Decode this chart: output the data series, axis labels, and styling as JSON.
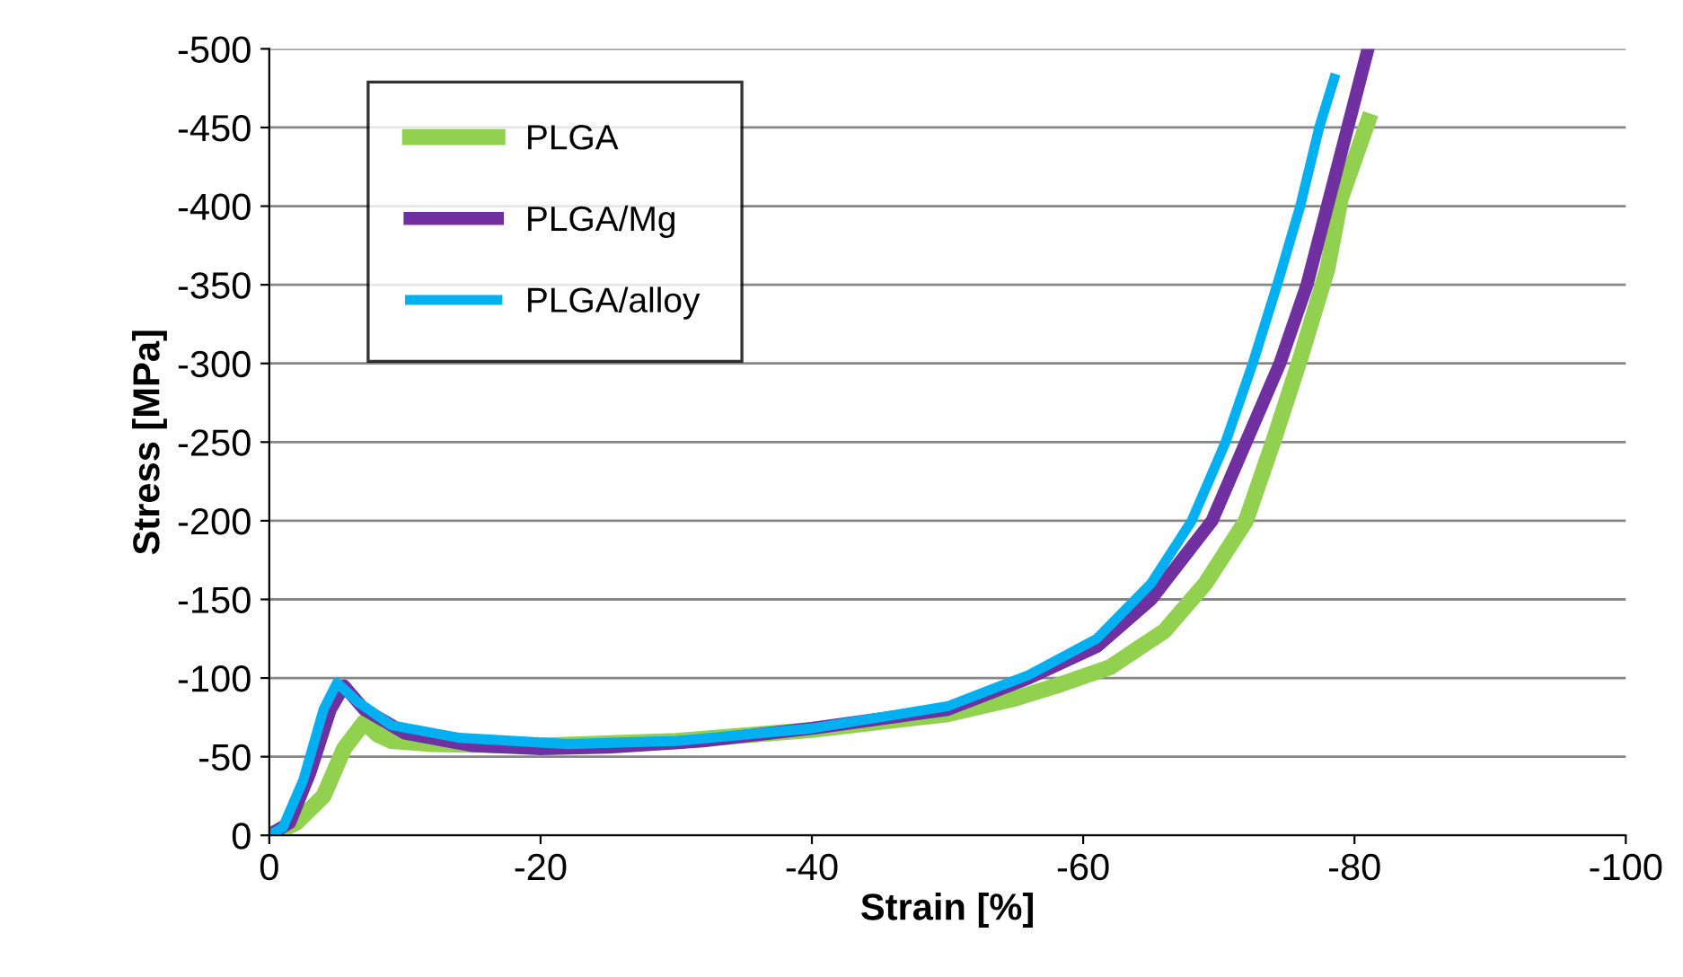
{
  "chart_data": {
    "type": "line",
    "xlabel": "Strain [%]",
    "ylabel": "Stress [MPa]",
    "xlim": [
      0,
      -100
    ],
    "ylim": [
      0,
      -500
    ],
    "xticks": [
      {
        "value": 0,
        "label": "0"
      },
      {
        "value": -20,
        "label": "-20"
      },
      {
        "value": -40,
        "label": "-40"
      },
      {
        "value": -60,
        "label": "-60"
      },
      {
        "value": -80,
        "label": "-80"
      },
      {
        "value": -100,
        "label": "-100"
      }
    ],
    "yticks": [
      {
        "value": 0,
        "label": "0"
      },
      {
        "value": -50,
        "label": "-50"
      },
      {
        "value": -100,
        "label": "-100"
      },
      {
        "value": -150,
        "label": "-150"
      },
      {
        "value": -200,
        "label": "-200"
      },
      {
        "value": -250,
        "label": "-250"
      },
      {
        "value": -300,
        "label": "-300"
      },
      {
        "value": -350,
        "label": "-350"
      },
      {
        "value": -400,
        "label": "-400"
      },
      {
        "value": -450,
        "label": "-450"
      },
      {
        "value": -500,
        "label": "-500"
      }
    ],
    "grid": "y",
    "legend": "top left",
    "marker": "none",
    "line_style": "solid",
    "series": [
      {
        "name": "PLGA",
        "color": "#92d050",
        "x": [
          0,
          -2,
          -4,
          -5.5,
          -7,
          -8,
          -9,
          -12,
          -20,
          -30,
          -40,
          -50,
          -55,
          -58,
          -62,
          -66,
          -69,
          -72,
          -74,
          -76,
          -78,
          -79,
          -81
        ],
        "values": [
          0,
          -8,
          -25,
          -55,
          -72,
          -64,
          -60,
          -58,
          -57,
          -60,
          -67,
          -77,
          -87,
          -95,
          -107,
          -130,
          -160,
          -200,
          -250,
          -303,
          -360,
          -405,
          -454
        ]
      },
      {
        "name": "PLGA/Mg",
        "color": "#7030a0",
        "x": [
          0,
          -1.5,
          -3,
          -4.5,
          -5.5,
          -7,
          -10,
          -15,
          -20,
          -25,
          -32,
          -40,
          -50,
          -56,
          -61,
          -65,
          -69.5,
          -72,
          -74.5,
          -76.5,
          -78,
          -79.5,
          -81
        ],
        "values": [
          0,
          -8,
          -40,
          -80,
          -95,
          -80,
          -65,
          -57,
          -55,
          -56,
          -60,
          -68,
          -80,
          -100,
          -120,
          -150,
          -200,
          -250,
          -300,
          -350,
          -400,
          -450,
          -500
        ]
      },
      {
        "name": "PLGA/alloy",
        "color": "#00b0f0",
        "x": [
          0,
          -1,
          -2.5,
          -4,
          -5,
          -6.5,
          -9,
          -14,
          -22,
          -30,
          -40,
          -50,
          -56,
          -61,
          -65,
          -68,
          -70.5,
          -72.5,
          -74.3,
          -76,
          -77.4,
          -78.5
        ],
        "values": [
          0,
          -5,
          -35,
          -80,
          -97,
          -85,
          -70,
          -62,
          -58,
          -60,
          -68,
          -82,
          -102,
          -125,
          -160,
          -200,
          -250,
          -300,
          -350,
          -400,
          -450,
          -481
        ]
      }
    ]
  }
}
